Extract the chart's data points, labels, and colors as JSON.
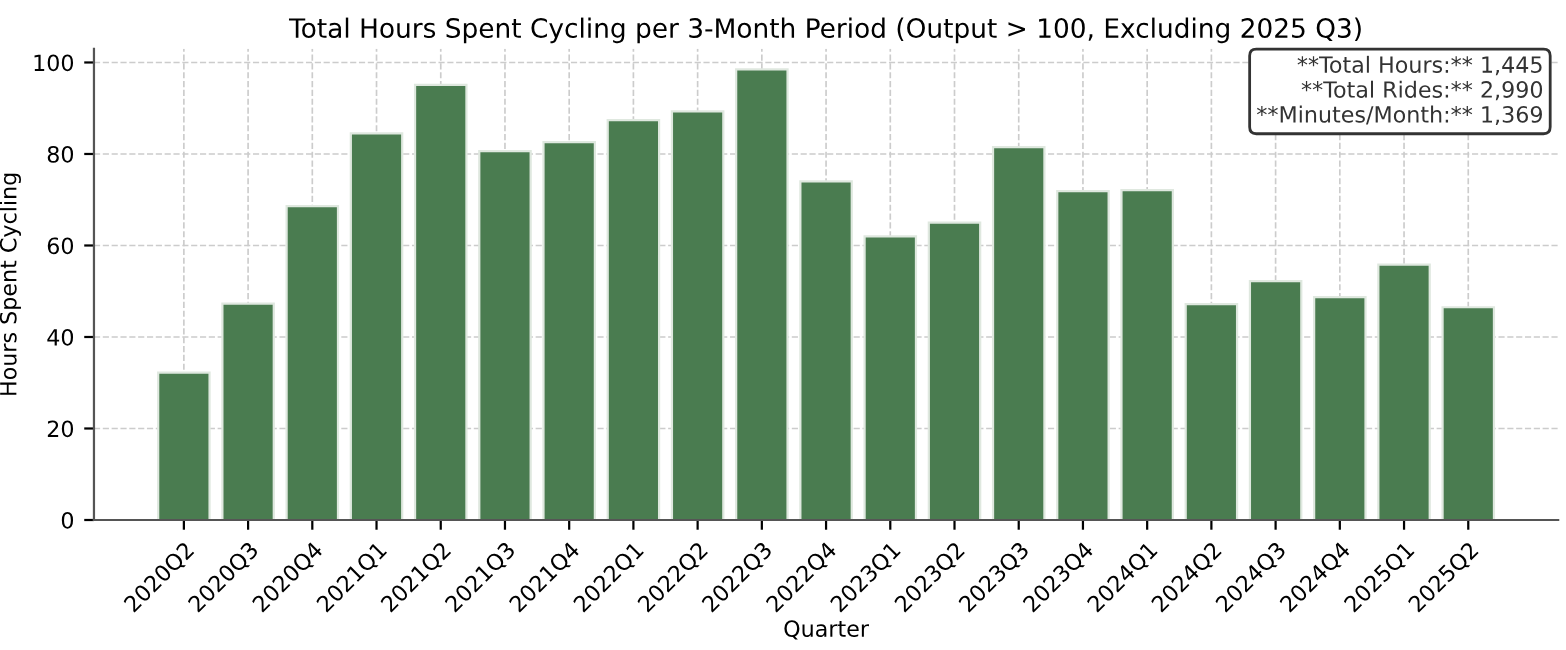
{
  "chart_data": {
    "type": "bar",
    "title": "Total Hours Spent Cycling per 3-Month Period (Output > 100, Excluding 2025 Q3)",
    "xlabel": "Quarter",
    "ylabel": "Hours Spent Cycling",
    "categories": [
      "2020Q2",
      "2020Q3",
      "2020Q4",
      "2021Q1",
      "2021Q2",
      "2021Q3",
      "2021Q4",
      "2022Q1",
      "2022Q2",
      "2022Q3",
      "2022Q4",
      "2023Q1",
      "2023Q2",
      "2023Q3",
      "2023Q4",
      "2024Q1",
      "2024Q2",
      "2024Q3",
      "2024Q4",
      "2025Q1",
      "2025Q2"
    ],
    "values": [
      32.2,
      47.3,
      68.6,
      84.5,
      95.1,
      80.6,
      82.6,
      87.4,
      89.3,
      98.5,
      74.0,
      62.0,
      65.0,
      81.5,
      71.9,
      72.1,
      47.2,
      52.2,
      48.7,
      55.8,
      46.5
    ],
    "color": "#4a7c50",
    "ylim": [
      0,
      103
    ],
    "yticks": [
      0,
      20,
      40,
      60,
      80,
      100
    ],
    "grid": true,
    "annotations": [
      "**Total Hours:** 1,445\n**Total Rides:** 2,990\n**Minutes/Month:** 1,369"
    ]
  }
}
